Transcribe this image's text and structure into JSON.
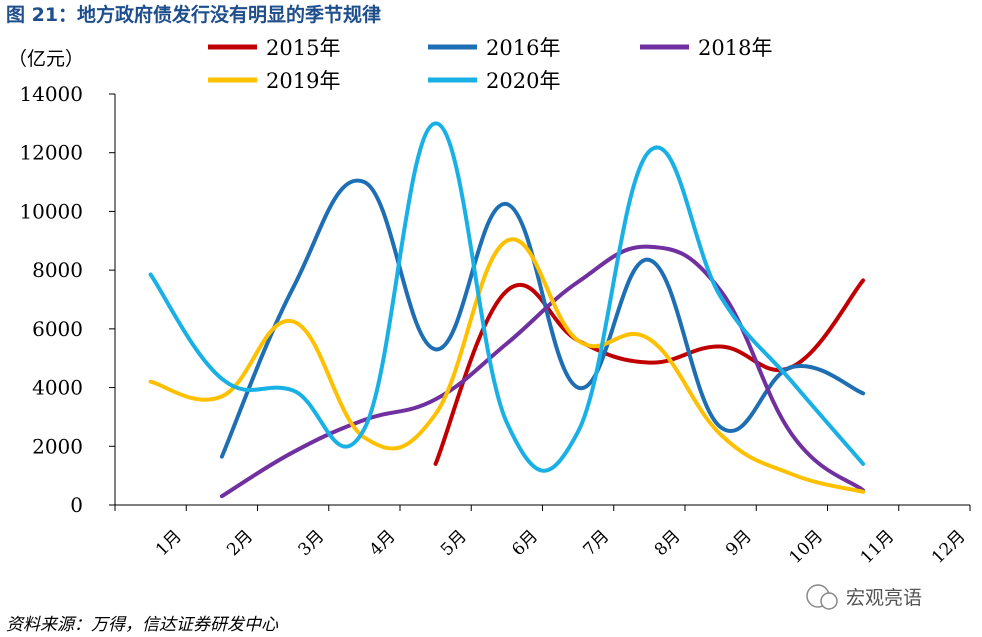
{
  "figure": {
    "title": "图  21：地方政府债发行没有明显的季节规律",
    "source": "资料来源：万得，信达证券研发中心",
    "watermark": "宏观亮语",
    "unit": "（亿元）"
  },
  "chart_data": {
    "type": "line",
    "categories": [
      "1月",
      "2月",
      "3月",
      "4月",
      "5月",
      "6月",
      "7月",
      "8月",
      "9月",
      "10月",
      "11月",
      "12月"
    ],
    "ylim": [
      0,
      14000
    ],
    "yticks": [
      0,
      2000,
      4000,
      6000,
      8000,
      10000,
      12000,
      14000
    ],
    "ylabel": "（亿元）",
    "legend_position": "top",
    "grid": false,
    "series": [
      {
        "name": "2015年",
        "color": "#c00000",
        "values": [
          null,
          null,
          null,
          null,
          1400,
          7300,
          5600,
          4850,
          5400,
          4700,
          7650,
          null
        ]
      },
      {
        "name": "2016年",
        "color": "#1e6eb4",
        "values": [
          null,
          1650,
          7400,
          11000,
          5300,
          10250,
          4000,
          8350,
          2650,
          4700,
          3800,
          null
        ]
      },
      {
        "name": "2018年",
        "color": "#7030a0",
        "values": [
          null,
          300,
          1800,
          2900,
          3600,
          5500,
          7600,
          8800,
          7300,
          2400,
          500,
          null
        ]
      },
      {
        "name": "2019年",
        "color": "#ffc000",
        "values": [
          4200,
          3700,
          6250,
          2300,
          3100,
          9000,
          5600,
          5650,
          2400,
          1050,
          450,
          null
        ]
      },
      {
        "name": "2020年",
        "color": "#19b0e6",
        "values": [
          7850,
          4300,
          3900,
          2600,
          13000,
          2800,
          2500,
          12050,
          7100,
          4200,
          1400,
          null
        ]
      }
    ]
  }
}
